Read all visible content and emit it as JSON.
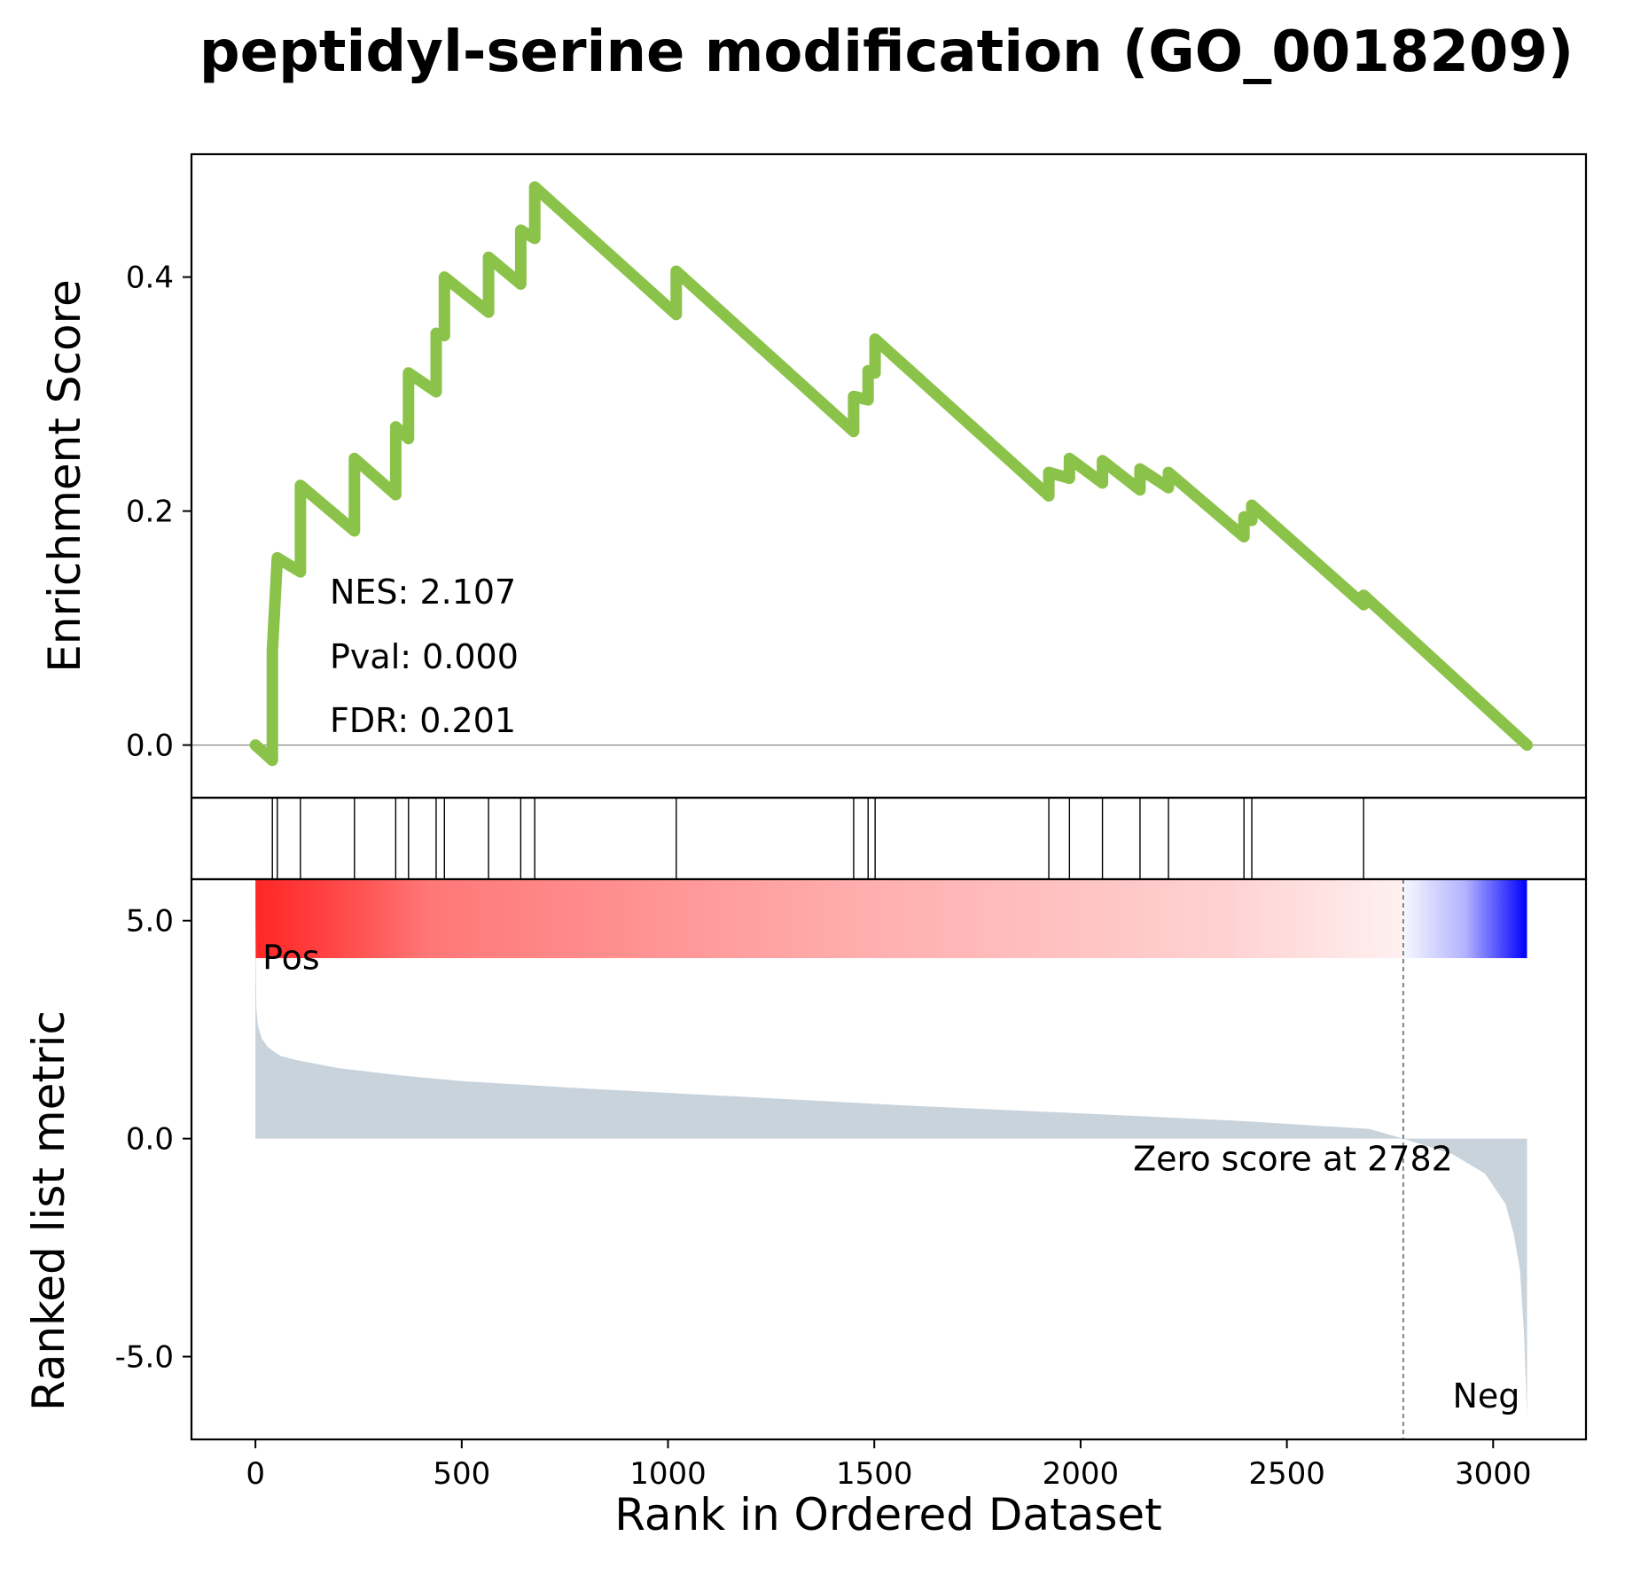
{
  "chart_data": {
    "type": "line",
    "title": "peptidyl-serine modification (GO_0018209)",
    "xlabel": "Rank in Ordered Dataset",
    "xlim": [
      -155,
      3225
    ],
    "xticks": [
      0,
      500,
      1000,
      1500,
      2000,
      2500,
      3000
    ],
    "xtick_labels": [
      "0",
      "500",
      "1000",
      "1500",
      "2000",
      "2500",
      "3000"
    ],
    "enrichment": {
      "ylabel": "Enrichment Score",
      "ylim": [
        -0.045,
        0.505
      ],
      "yticks": [
        0.0,
        0.2,
        0.4
      ],
      "ytick_labels": [
        "0.0",
        "0.2",
        "0.4"
      ],
      "line_color": "#8bc34a",
      "baseline": 0,
      "hit_ranks": [
        41,
        53,
        109,
        240,
        340,
        371,
        438,
        458,
        565,
        643,
        677,
        1020,
        1450,
        1485,
        1502,
        1923,
        1973,
        2053,
        2144,
        2213,
        2396,
        2415,
        2686
      ],
      "running_es": [
        0.0,
        -0.013,
        0.08,
        0.16,
        0.148,
        0.222,
        0.183,
        0.245,
        0.214,
        0.272,
        0.262,
        0.318,
        0.302,
        0.352,
        0.35,
        0.4,
        0.37,
        0.417,
        0.394,
        0.44,
        0.433,
        0.477,
        0.368,
        0.405,
        0.268,
        0.298,
        0.295,
        0.32,
        0.318,
        0.347,
        0.213,
        0.233,
        0.228,
        0.245,
        0.224,
        0.243,
        0.218,
        0.236,
        0.22,
        0.233,
        0.178,
        0.195,
        0.192,
        0.205,
        0.12,
        0.128,
        0.0
      ],
      "running_x": [
        0,
        41,
        41,
        53,
        109,
        109,
        240,
        240,
        340,
        340,
        371,
        371,
        438,
        438,
        458,
        458,
        565,
        565,
        643,
        643,
        677,
        677,
        1020,
        1020,
        1450,
        1450,
        1485,
        1485,
        1502,
        1502,
        1923,
        1923,
        1973,
        1973,
        2053,
        2053,
        2144,
        2144,
        2213,
        2213,
        2396,
        2396,
        2415,
        2415,
        2686,
        2686,
        3082
      ],
      "annotations": [
        "NES: 2.107",
        "Pval: 0.000",
        "FDR: 0.201"
      ]
    },
    "ranked_metric": {
      "ylabel": "Ranked list metric",
      "ylim": [
        -6.9,
        5.95
      ],
      "yticks": [
        5.0,
        0.0,
        -5.0
      ],
      "ytick_labels": [
        "5.0",
        "0.0",
        "-5.0"
      ],
      "fill_color": "#c9d3dc",
      "n_genes": 3082,
      "zero_cross": 2782,
      "zero_label": "Zero score at 2782",
      "pos_label": "Pos",
      "neg_label": "Neg",
      "pos_color": "#ff0000",
      "neg_color": "#0000ff",
      "profile_x": [
        0,
        2,
        6,
        15,
        30,
        60,
        100,
        200,
        350,
        500,
        800,
        1200,
        1600,
        2000,
        2400,
        2700,
        2782,
        2900,
        2980,
        3030,
        3050,
        3065,
        3075,
        3082
      ],
      "profile_y": [
        5.3,
        3.0,
        2.6,
        2.3,
        2.1,
        1.9,
        1.8,
        1.62,
        1.45,
        1.32,
        1.15,
        0.95,
        0.75,
        0.58,
        0.4,
        0.22,
        0.0,
        -0.35,
        -0.8,
        -1.5,
        -2.2,
        -3.0,
        -4.5,
        -6.4
      ]
    }
  }
}
